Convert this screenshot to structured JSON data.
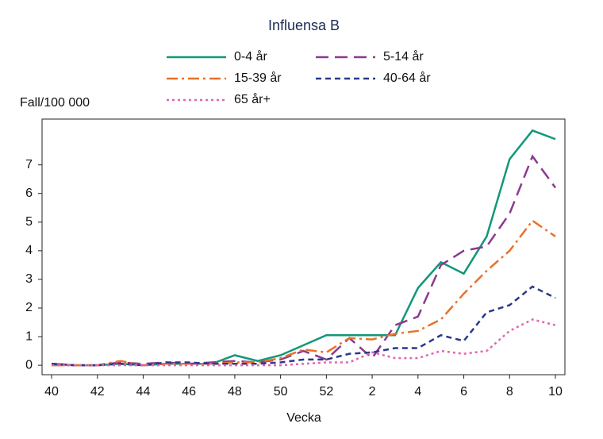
{
  "chart_data": {
    "type": "line",
    "title": "Influensa B",
    "y_label": "Fall/100 000",
    "x_label": "Vecka",
    "categories": [
      "40",
      null,
      "42",
      null,
      "44",
      null,
      "46",
      null,
      "48",
      null,
      "50",
      null,
      "52",
      null,
      "2",
      null,
      "4",
      null,
      "6",
      null,
      "8",
      null,
      "10"
    ],
    "ylim": [
      -0.33,
      8.6
    ],
    "yticks": [
      0,
      1,
      2,
      3,
      4,
      5,
      6,
      7
    ],
    "series": [
      {
        "name": "0-4 år",
        "color": "#12977a",
        "style": "solid",
        "values": [
          0.05,
          0.0,
          0.0,
          0.05,
          0.0,
          0.05,
          0.05,
          0.05,
          0.35,
          0.15,
          0.35,
          0.7,
          1.05,
          1.05,
          1.05,
          1.05,
          2.7,
          3.6,
          3.2,
          4.5,
          7.2,
          8.2,
          7.9
        ]
      },
      {
        "name": "5-14 år",
        "color": "#8b3a8f",
        "style": "longdash",
        "values": [
          0.05,
          0.0,
          0.0,
          0.1,
          0.05,
          0.1,
          0.05,
          0.1,
          0.15,
          0.1,
          0.2,
          0.5,
          0.2,
          0.95,
          0.25,
          1.4,
          1.7,
          3.5,
          4.0,
          4.15,
          5.3,
          7.3,
          6.2
        ]
      },
      {
        "name": "15-39 år",
        "color": "#e8712b",
        "style": "dashdot",
        "values": [
          0.0,
          0.0,
          0.0,
          0.15,
          0.0,
          0.05,
          0.05,
          0.05,
          0.1,
          0.1,
          0.25,
          0.55,
          0.45,
          0.95,
          0.9,
          1.1,
          1.2,
          1.6,
          2.5,
          3.3,
          4.0,
          5.05,
          4.5
        ]
      },
      {
        "name": "40-64 år",
        "color": "#28398c",
        "style": "shortdash",
        "values": [
          0.05,
          0.0,
          0.0,
          0.05,
          0.0,
          0.1,
          0.1,
          0.05,
          0.05,
          0.05,
          0.1,
          0.2,
          0.2,
          0.4,
          0.45,
          0.6,
          0.6,
          1.05,
          0.85,
          1.85,
          2.1,
          2.75,
          2.35
        ]
      },
      {
        "name": "65 år+",
        "color": "#e066b0",
        "style": "dot",
        "values": [
          0.0,
          0.0,
          0.0,
          0.0,
          0.0,
          0.0,
          0.0,
          0.0,
          0.0,
          0.0,
          0.0,
          0.05,
          0.1,
          0.1,
          0.45,
          0.25,
          0.25,
          0.5,
          0.4,
          0.5,
          1.2,
          1.6,
          1.4
        ]
      }
    ]
  }
}
